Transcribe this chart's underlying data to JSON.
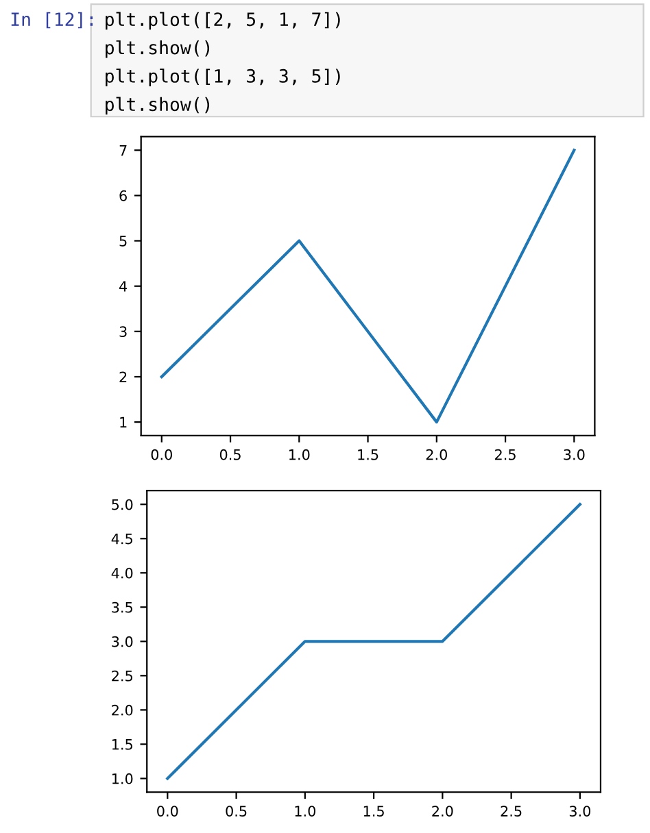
{
  "chart_data": [
    {
      "type": "line",
      "x": [
        0,
        1,
        2,
        3
      ],
      "values": [
        2,
        5,
        1,
        7
      ],
      "color": "#1f77b4",
      "xlim": [
        -0.15,
        3.15
      ],
      "ylim": [
        0.7,
        7.3
      ],
      "xticks": [
        {
          "value": 0,
          "label": "0.0"
        },
        0.5,
        {
          "value": 1,
          "label": "1.0"
        },
        1.5,
        {
          "value": 2,
          "label": "2.0"
        },
        2.5,
        {
          "value": 3,
          "label": "3.0"
        }
      ],
      "yticks": [
        1,
        2,
        3,
        4,
        5,
        6,
        7
      ],
      "grid": false,
      "annotations": [
        "In [12]:",
        "plt.plot([2, 5, 1, 7])",
        "plt.show()",
        "plt.plot([1, 3, 3, 5])",
        "plt.show()"
      ]
    },
    {
      "type": "line",
      "x": [
        0,
        1,
        2,
        3
      ],
      "values": [
        1,
        3,
        3,
        5
      ],
      "color": "#1f77b4",
      "xlim": [
        -0.15,
        3.15
      ],
      "ylim": [
        0.8,
        5.2
      ],
      "xticks": [
        {
          "value": 0,
          "label": "0.0"
        },
        0.5,
        {
          "value": 1,
          "label": "1.0"
        },
        1.5,
        {
          "value": 2,
          "label": "2.0"
        },
        2.5,
        {
          "value": 3,
          "label": "3.0"
        }
      ],
      "yticks": [
        {
          "value": 1,
          "label": "1.0"
        },
        1.5,
        {
          "value": 2,
          "label": "2.0"
        },
        2.5,
        {
          "value": 3,
          "label": "3.0"
        },
        3.5,
        {
          "value": 4,
          "label": "4.0"
        },
        4.5,
        {
          "value": 5,
          "label": "5.0"
        }
      ],
      "grid": false
    }
  ]
}
